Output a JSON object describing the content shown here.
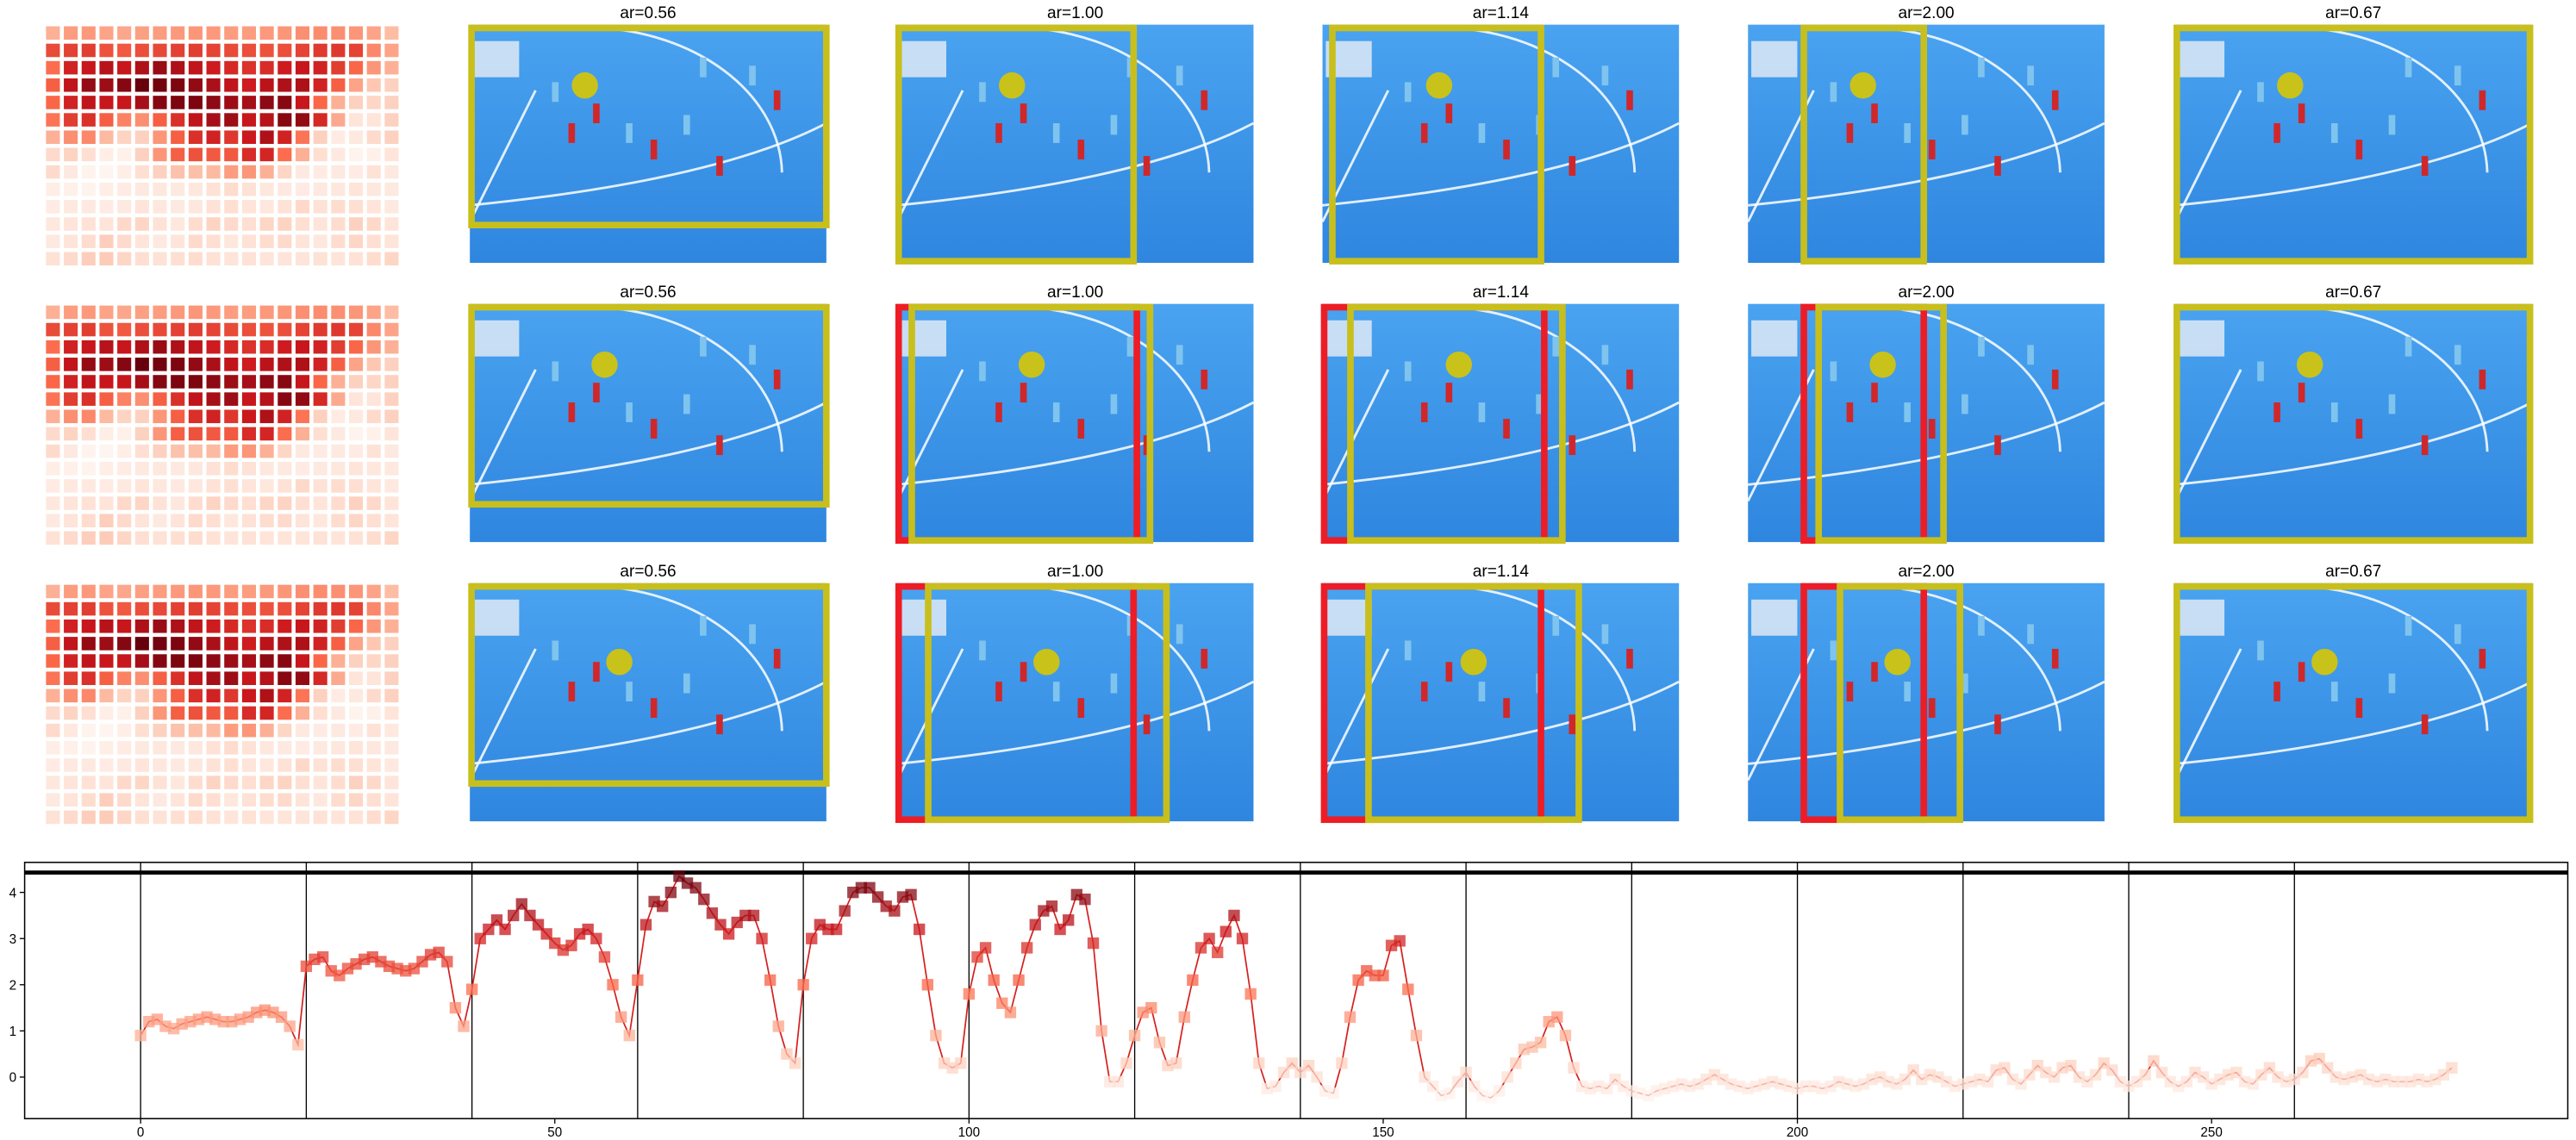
{
  "panels": {
    "rows": [
      [
        "ar=0.56",
        "ar=1.00",
        "ar=1.14",
        "ar=2.00",
        "ar=0.67"
      ],
      [
        "ar=0.56",
        "ar=1.00",
        "ar=1.14",
        "ar=2.00",
        "ar=0.67"
      ],
      [
        "ar=0.56",
        "ar=1.00",
        "ar=1.14",
        "ar=2.00",
        "ar=0.67"
      ]
    ]
  },
  "chart_data": {
    "type": "line",
    "colormap": [
      "#fff5f0",
      "#fcbba1",
      "#fb6a4a",
      "#cb181d",
      "#67000d"
    ],
    "xlim": [
      -14,
      293
    ],
    "ylim": [
      -0.9,
      4.65
    ],
    "xticks": [
      0,
      50,
      100,
      150,
      200,
      250
    ],
    "yticks": [
      0,
      1,
      2,
      3,
      4
    ],
    "vlines": [
      0,
      20,
      40,
      60,
      80,
      100,
      120,
      140,
      160,
      180,
      200,
      220,
      240,
      260
    ],
    "hline": 4.43,
    "series": [
      {
        "color": "#d62020",
        "x": [
          0,
          1,
          2,
          3,
          4,
          5,
          6,
          7,
          8,
          9,
          10,
          11,
          12,
          13,
          14,
          15,
          16,
          17,
          18,
          19,
          20,
          21,
          22,
          23,
          24,
          25,
          26,
          27,
          28,
          29,
          30,
          31,
          32,
          33,
          34,
          35,
          36,
          37,
          38,
          39,
          40,
          41,
          42,
          43,
          44,
          45,
          46,
          47,
          48,
          49,
          50,
          51,
          52,
          53,
          54,
          55,
          56,
          57,
          58,
          59,
          60,
          61,
          62,
          63,
          64,
          65,
          66,
          67,
          68,
          69,
          70,
          71,
          72,
          73,
          74,
          75,
          76,
          77,
          78,
          79,
          80,
          81,
          82,
          83,
          84,
          85,
          86,
          87,
          88,
          89,
          90,
          91,
          92,
          93,
          94,
          95,
          96,
          97,
          98,
          99,
          100,
          101,
          102,
          103,
          104,
          105,
          106,
          107,
          108,
          109,
          110,
          111,
          112,
          113,
          114,
          115,
          116,
          117,
          118,
          119,
          120,
          121,
          122,
          123,
          124,
          125,
          126,
          127,
          128,
          129,
          130,
          131,
          132,
          133,
          134,
          135,
          136,
          137,
          138,
          139,
          140,
          141,
          142,
          143,
          144,
          145,
          146,
          147,
          148,
          149,
          150,
          151,
          152,
          153,
          154,
          155,
          156,
          157,
          158,
          159,
          160,
          161,
          162,
          163,
          164,
          165,
          166,
          167,
          168,
          169,
          170,
          171,
          172,
          173,
          174,
          175,
          176,
          177,
          178,
          179,
          180,
          181,
          182,
          183,
          184,
          185,
          186,
          187,
          188,
          189,
          190,
          191,
          192,
          193,
          194,
          195,
          196,
          197,
          198,
          199,
          200,
          201,
          202,
          203,
          204,
          205,
          206,
          207,
          208,
          209,
          210,
          211,
          212,
          213,
          214,
          215,
          216,
          217,
          218,
          219,
          220,
          221,
          222,
          223,
          224,
          225,
          226,
          227,
          228,
          229,
          230,
          231,
          232,
          233,
          234,
          235,
          236,
          237,
          238,
          239,
          240,
          241,
          242,
          243,
          244,
          245,
          246,
          247,
          248,
          249,
          250,
          251,
          252,
          253,
          254,
          255,
          256,
          257,
          258,
          259,
          260,
          261,
          262,
          263,
          264,
          265,
          266,
          267,
          268,
          269,
          270,
          271,
          272,
          273,
          274,
          275,
          276,
          277,
          278,
          279
        ],
        "values": [
          0.9,
          1.2,
          1.25,
          1.1,
          1.05,
          1.15,
          1.2,
          1.25,
          1.3,
          1.25,
          1.2,
          1.2,
          1.25,
          1.3,
          1.4,
          1.45,
          1.4,
          1.3,
          1.1,
          0.7,
          2.4,
          2.55,
          2.6,
          2.3,
          2.2,
          2.35,
          2.45,
          2.55,
          2.6,
          2.5,
          2.4,
          2.35,
          2.3,
          2.35,
          2.5,
          2.65,
          2.7,
          2.5,
          1.5,
          1.1,
          1.9,
          3.0,
          3.2,
          3.4,
          3.2,
          3.5,
          3.75,
          3.5,
          3.3,
          3.1,
          2.9,
          2.75,
          2.85,
          3.1,
          3.2,
          3.0,
          2.6,
          2.0,
          1.3,
          0.9,
          2.1,
          3.3,
          3.8,
          3.7,
          4.0,
          4.35,
          4.2,
          4.1,
          3.85,
          3.55,
          3.3,
          3.1,
          3.35,
          3.5,
          3.5,
          3.0,
          2.1,
          1.1,
          0.5,
          0.3,
          2.0,
          3.0,
          3.3,
          3.2,
          3.2,
          3.6,
          4.0,
          4.1,
          4.1,
          3.9,
          3.7,
          3.6,
          3.9,
          3.95,
          3.2,
          2.0,
          0.9,
          0.3,
          0.2,
          0.3,
          1.8,
          2.6,
          2.8,
          2.1,
          1.6,
          1.4,
          2.1,
          2.8,
          3.3,
          3.6,
          3.7,
          3.2,
          3.4,
          3.95,
          3.85,
          2.9,
          1.0,
          -0.1,
          -0.1,
          0.3,
          0.9,
          1.4,
          1.5,
          0.75,
          0.25,
          0.3,
          1.3,
          2.1,
          2.8,
          3.0,
          2.7,
          3.15,
          3.5,
          3.0,
          1.8,
          0.3,
          -0.25,
          -0.2,
          0.1,
          0.3,
          0.1,
          0.25,
          0.0,
          -0.3,
          -0.35,
          0.3,
          1.3,
          2.1,
          2.3,
          2.2,
          2.2,
          2.85,
          2.95,
          1.9,
          0.9,
          0.0,
          -0.2,
          -0.4,
          -0.35,
          -0.1,
          0.1,
          -0.2,
          -0.4,
          -0.45,
          -0.3,
          0.0,
          0.3,
          0.6,
          0.65,
          0.75,
          1.2,
          1.3,
          0.9,
          0.2,
          -0.2,
          -0.25,
          -0.2,
          -0.25,
          -0.05,
          -0.2,
          -0.3,
          -0.35,
          -0.4,
          -0.3,
          -0.25,
          -0.2,
          -0.15,
          -0.2,
          -0.15,
          -0.05,
          0.05,
          -0.05,
          -0.15,
          -0.2,
          -0.25,
          -0.2,
          -0.15,
          -0.1,
          -0.15,
          -0.2,
          -0.25,
          -0.2,
          -0.2,
          -0.25,
          -0.2,
          -0.1,
          -0.15,
          -0.2,
          -0.15,
          -0.05,
          0.0,
          -0.1,
          -0.15,
          -0.05,
          0.15,
          -0.05,
          0.05,
          0.0,
          -0.1,
          -0.2,
          -0.15,
          -0.1,
          -0.05,
          -0.1,
          0.15,
          0.2,
          -0.05,
          -0.15,
          0.05,
          0.25,
          0.1,
          0.0,
          0.2,
          0.25,
          0.0,
          -0.1,
          0.05,
          0.3,
          0.15,
          -0.1,
          -0.2,
          -0.1,
          0.05,
          0.35,
          0.1,
          -0.1,
          -0.2,
          -0.1,
          0.1,
          0.0,
          -0.15,
          -0.05,
          0.05,
          0.1,
          -0.1,
          -0.15,
          0.05,
          0.2,
          0.0,
          -0.1,
          -0.05,
          0.1,
          0.35,
          0.4,
          0.2,
          0.0,
          -0.05,
          0.0,
          0.05,
          -0.05,
          -0.1,
          -0.05,
          -0.1,
          -0.1,
          -0.1,
          -0.05,
          -0.1,
          -0.05,
          0.05,
          0.2
        ]
      }
    ]
  }
}
